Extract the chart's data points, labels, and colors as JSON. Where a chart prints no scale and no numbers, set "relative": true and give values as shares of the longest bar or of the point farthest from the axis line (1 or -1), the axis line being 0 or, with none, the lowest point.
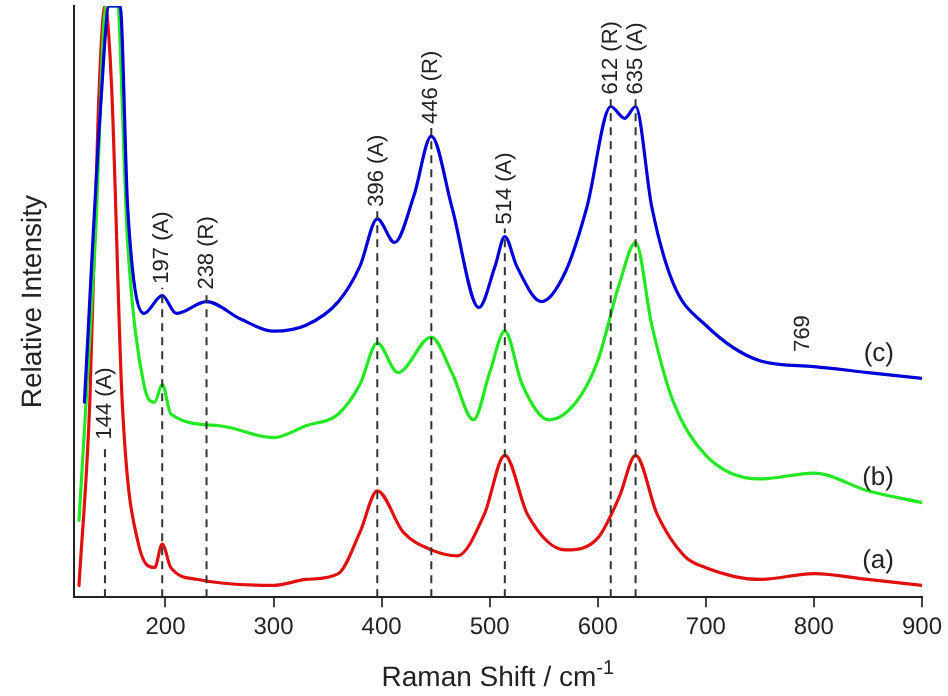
{
  "chart_data": {
    "type": "line",
    "relative": true,
    "xlabel": "Raman Shift / cm$^{-1}$",
    "ylabel": "Relative Intensity",
    "xlim": [
      115,
      900
    ],
    "xticks": [
      200,
      300,
      400,
      500,
      600,
      700,
      800,
      900
    ],
    "tick_labels": "x",
    "grid": false,
    "legend": false,
    "marker": "none",
    "line_style": "solid",
    "series": [
      {
        "name": "(c)",
        "color": "#0000d8",
        "x": [
          125,
          140,
          148,
          158,
          165,
          180,
          197,
          210,
          238,
          270,
          300,
          330,
          360,
          380,
          396,
          412,
          430,
          446,
          465,
          490,
          505,
          514,
          525,
          548,
          570,
          590,
          612,
          625,
          635,
          650,
          670,
          700,
          750,
          800,
          850,
          900
        ],
        "values": [
          0.33,
          0.83,
          1,
          1,
          0.66,
          0.48,
          0.51,
          0.48,
          0.5,
          0.47,
          0.45,
          0.46,
          0.5,
          0.56,
          0.64,
          0.6,
          0.68,
          0.78,
          0.66,
          0.49,
          0.56,
          0.61,
          0.56,
          0.5,
          0.55,
          0.66,
          0.83,
          0.81,
          0.83,
          0.66,
          0.53,
          0.46,
          0.4,
          0.39,
          0.38,
          0.37
        ]
      },
      {
        "name": "(b)",
        "color": "#22e822",
        "x": [
          120,
          135,
          145,
          155,
          165,
          180,
          190,
          197,
          205,
          250,
          300,
          330,
          360,
          380,
          396,
          415,
          446,
          465,
          485,
          500,
          514,
          530,
          555,
          580,
          600,
          620,
          635,
          650,
          670,
          700,
          750,
          800,
          850,
          900
        ],
        "values": [
          0.13,
          0.6,
          1,
          1,
          0.6,
          0.36,
          0.33,
          0.36,
          0.31,
          0.29,
          0.27,
          0.29,
          0.31,
          0.36,
          0.43,
          0.38,
          0.44,
          0.38,
          0.3,
          0.38,
          0.45,
          0.36,
          0.3,
          0.33,
          0.4,
          0.53,
          0.6,
          0.46,
          0.33,
          0.24,
          0.2,
          0.21,
          0.18,
          0.16
        ]
      },
      {
        "name": "(a)",
        "color": "#e01010",
        "x": [
          120,
          130,
          138,
          144,
          150,
          160,
          175,
          190,
          197,
          205,
          230,
          300,
          330,
          360,
          380,
          396,
          420,
          446,
          470,
          495,
          514,
          535,
          570,
          600,
          620,
          635,
          655,
          680,
          700,
          750,
          800,
          850,
          900
        ],
        "values": [
          0.02,
          0.33,
          0.83,
          1,
          0.87,
          0.33,
          0.09,
          0.05,
          0.09,
          0.05,
          0.03,
          0.02,
          0.03,
          0.04,
          0.11,
          0.18,
          0.11,
          0.08,
          0.07,
          0.14,
          0.24,
          0.14,
          0.08,
          0.1,
          0.17,
          0.24,
          0.14,
          0.07,
          0.05,
          0.03,
          0.04,
          0.03,
          0.02
        ]
      }
    ],
    "ref_lines": [
      {
        "axis": "x",
        "value": 144,
        "label": "144 (A)",
        "line_style": "dashed",
        "color": "#333333"
      },
      {
        "axis": "x",
        "value": 197,
        "label": "197 (A)",
        "line_style": "dashed",
        "color": "#333333"
      },
      {
        "axis": "x",
        "value": 238,
        "label": "238 (R)",
        "line_style": "dashed",
        "color": "#333333"
      },
      {
        "axis": "x",
        "value": 396,
        "label": "396 (A)",
        "line_style": "dashed",
        "color": "#333333"
      },
      {
        "axis": "x",
        "value": 446,
        "label": "446 (R)",
        "line_style": "dashed",
        "color": "#333333"
      },
      {
        "axis": "x",
        "value": 514,
        "label": "514 (A)",
        "line_style": "dashed",
        "color": "#333333"
      },
      {
        "axis": "x",
        "value": 612,
        "label": "612 (R)",
        "line_style": "dashed",
        "color": "#333333"
      },
      {
        "axis": "x",
        "value": 635,
        "label": "635 (A)",
        "line_style": "dashed",
        "color": "#333333"
      }
    ],
    "annotations": [
      "769"
    ]
  }
}
